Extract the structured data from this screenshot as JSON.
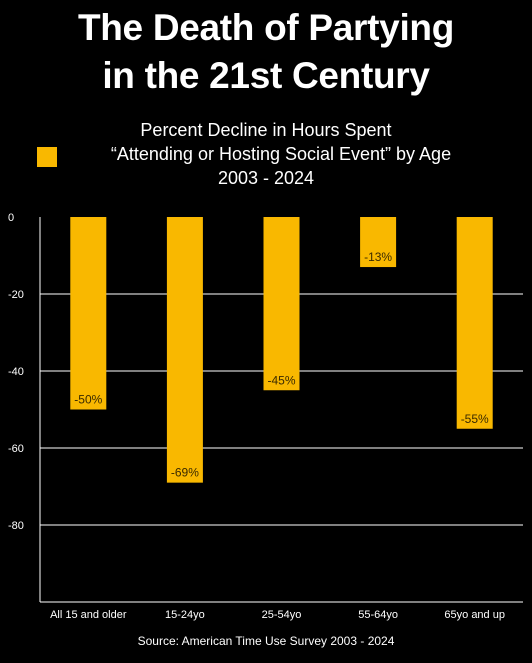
{
  "title": {
    "line1": "The Death of Partying",
    "line2": "in the 21st Century"
  },
  "legend": {
    "line1": "Percent Decline in Hours Spent",
    "line2": "“Attending or Hosting Social Event” by Age",
    "line3": "2003 - 2024"
  },
  "source": "Source: American Time Use Survey 2003 - 2024",
  "colors": {
    "bar": "#f9b800",
    "background": "#000000",
    "gridline": "#ffffff"
  },
  "chart_data": {
    "type": "bar",
    "categories": [
      "All 15 and older",
      "15-24yo",
      "25-54yo",
      "55-64yo",
      "65yo and up"
    ],
    "values": [
      -50,
      -69,
      -45,
      -13,
      -55
    ],
    "data_labels": [
      "-50%",
      "-69%",
      "-45%",
      "-13%",
      "-55%"
    ],
    "yticks": [
      0,
      -20,
      -40,
      -60,
      -80
    ],
    "ylim": [
      -100,
      0
    ],
    "grid": true,
    "legend_position": "top"
  }
}
